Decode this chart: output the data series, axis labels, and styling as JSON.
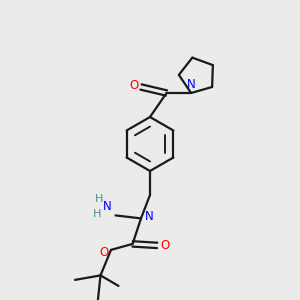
{
  "bg_color": "#ebebeb",
  "bond_color": "#1a1a1a",
  "N_color": "#0000ff",
  "O_color": "#ff0000",
  "H_color": "#4a9090",
  "line_width": 1.6,
  "figsize": [
    3.0,
    3.0
  ],
  "dpi": 100,
  "xlim": [
    0,
    10
  ],
  "ylim": [
    0,
    10
  ]
}
